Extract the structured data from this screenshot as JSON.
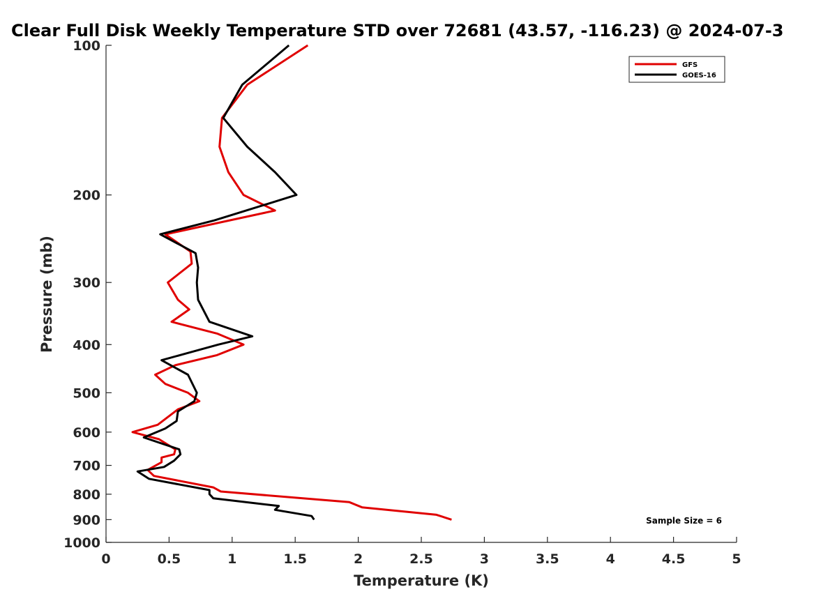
{
  "chart_data": {
    "type": "line",
    "title": "Clear Full Disk Weekly Temperature STD over 72681 (43.57, -116.23) @ 2024-07-3",
    "xlabel": "Temperature (K)",
    "ylabel": "Pressure (mb)",
    "xlim": [
      0,
      5
    ],
    "ylim": [
      1000,
      100
    ],
    "yscale": "log",
    "x_ticks": [
      "0",
      "0.5",
      "1",
      "1.5",
      "2",
      "2.5",
      "3",
      "3.5",
      "4",
      "4.5",
      "5"
    ],
    "x_tick_values": [
      0,
      0.5,
      1,
      1.5,
      2,
      2.5,
      3,
      3.5,
      4,
      4.5,
      5
    ],
    "y_ticks": [
      "100",
      "200",
      "300",
      "400",
      "500",
      "600",
      "700",
      "800",
      "900",
      "1000"
    ],
    "y_tick_values": [
      100,
      200,
      300,
      400,
      500,
      600,
      700,
      800,
      900,
      1000
    ],
    "legend_position": "top-right",
    "grid": false,
    "annotation": "Sample Size = 6",
    "series": [
      {
        "name": "GFS",
        "color": "#e00000",
        "points": [
          [
            1.6,
            100
          ],
          [
            1.12,
            120
          ],
          [
            0.92,
            140
          ],
          [
            0.9,
            160
          ],
          [
            0.97,
            180
          ],
          [
            1.09,
            200
          ],
          [
            1.34,
            215
          ],
          [
            0.47,
            240
          ],
          [
            0.67,
            260
          ],
          [
            0.68,
            275
          ],
          [
            0.49,
            300
          ],
          [
            0.57,
            325
          ],
          [
            0.66,
            340
          ],
          [
            0.52,
            360
          ],
          [
            0.88,
            380
          ],
          [
            1.09,
            400
          ],
          [
            0.88,
            420
          ],
          [
            0.55,
            440
          ],
          [
            0.39,
            460
          ],
          [
            0.47,
            480
          ],
          [
            0.65,
            500
          ],
          [
            0.74,
            520
          ],
          [
            0.57,
            540
          ],
          [
            0.41,
            580
          ],
          [
            0.21,
            600
          ],
          [
            0.42,
            620
          ],
          [
            0.55,
            650
          ],
          [
            0.54,
            665
          ],
          [
            0.44,
            675
          ],
          [
            0.44,
            690
          ],
          [
            0.33,
            715
          ],
          [
            0.38,
            735
          ],
          [
            0.85,
            775
          ],
          [
            0.91,
            790
          ],
          [
            1.93,
            830
          ],
          [
            2.03,
            850
          ],
          [
            2.62,
            880
          ],
          [
            2.74,
            900
          ]
        ]
      },
      {
        "name": "GOES-16",
        "color": "#000000",
        "points": [
          [
            1.45,
            100
          ],
          [
            1.08,
            120
          ],
          [
            0.93,
            140
          ],
          [
            1.12,
            160
          ],
          [
            1.34,
            180
          ],
          [
            1.51,
            200
          ],
          [
            0.86,
            225
          ],
          [
            0.43,
            240
          ],
          [
            0.71,
            262
          ],
          [
            0.73,
            280
          ],
          [
            0.72,
            300
          ],
          [
            0.73,
            325
          ],
          [
            0.82,
            360
          ],
          [
            1.16,
            385
          ],
          [
            0.89,
            400
          ],
          [
            0.44,
            430
          ],
          [
            0.65,
            460
          ],
          [
            0.72,
            500
          ],
          [
            0.7,
            520
          ],
          [
            0.57,
            545
          ],
          [
            0.56,
            570
          ],
          [
            0.47,
            590
          ],
          [
            0.3,
            615
          ],
          [
            0.58,
            650
          ],
          [
            0.59,
            665
          ],
          [
            0.54,
            685
          ],
          [
            0.46,
            705
          ],
          [
            0.25,
            720
          ],
          [
            0.34,
            745
          ],
          [
            0.82,
            785
          ],
          [
            0.82,
            800
          ],
          [
            0.85,
            815
          ],
          [
            1.37,
            845
          ],
          [
            1.34,
            860
          ],
          [
            1.63,
            885
          ],
          [
            1.65,
            900
          ]
        ]
      }
    ]
  }
}
